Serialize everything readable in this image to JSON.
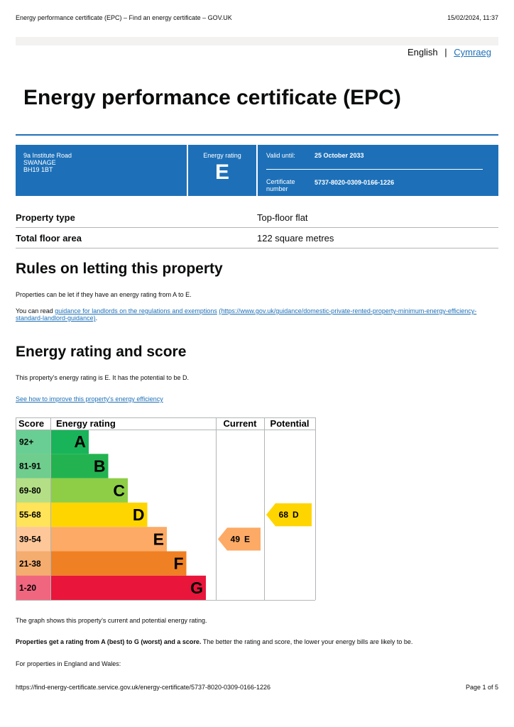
{
  "print_header": {
    "left": "Energy performance certificate (EPC) – Find an energy certificate – GOV.UK",
    "right": "15/02/2024, 11:37"
  },
  "language": {
    "current": "English",
    "separator": "|",
    "other": "Cymraeg"
  },
  "title": "Energy performance certificate (EPC)",
  "summary": {
    "address": [
      "9a Institute Road",
      "SWANAGE",
      "BH19 1BT"
    ],
    "rating_label": "Energy rating",
    "rating": "E",
    "valid_until_label": "Valid until:",
    "valid_until": "25 October 2033",
    "certificate_label": "Certificate number",
    "certificate_number": "5737-8020-0309-0166-1226"
  },
  "property": [
    {
      "label": "Property type",
      "value": "Top-floor flat"
    },
    {
      "label": "Total floor area",
      "value": "122 square metres"
    }
  ],
  "letting": {
    "heading": "Rules on letting this property",
    "intro": "Properties can be let if they have an energy rating from A to E.",
    "read_prefix": "You can read",
    "link": "guidance for landlords on the regulations and exemptions",
    "url": "(https://www.gov.uk/guidance/domestic-private-rented-property-minimum-energy-efficiency-standard-landlord-guidance)",
    "suffix": "."
  },
  "energy": {
    "heading": "Energy rating and score",
    "intro": "This property’s energy rating is E. It has the potential to be D.",
    "link": "See how to improve this property’s energy efficiency"
  },
  "rating_chart": {
    "headers": [
      "Score",
      "Energy rating",
      "Current",
      "Potential"
    ],
    "bands": [
      {
        "score": "92+",
        "letter": "A",
        "color": "#19b459"
      },
      {
        "score": "81-91",
        "letter": "B",
        "color": "#22b350"
      },
      {
        "score": "69-80",
        "letter": "C",
        "color": "#8dce46"
      },
      {
        "score": "55-68",
        "letter": "D",
        "color": "#ffd500"
      },
      {
        "score": "39-54",
        "letter": "E",
        "color": "#fcaa65"
      },
      {
        "score": "21-38",
        "letter": "F",
        "color": "#ef8023"
      },
      {
        "score": "1-20",
        "letter": "G",
        "color": "#e9153b"
      }
    ],
    "current": {
      "score": 49,
      "letter": "E"
    },
    "potential": {
      "score": 68,
      "letter": "D"
    }
  },
  "notes": {
    "graph": "The graph shows this property’s current and potential energy rating.",
    "bold": "Properties get a rating from A (best) to G (worst) and a score.",
    "rest": "The better the rating and score, the lower your energy bills are likely to be.",
    "regions": "For properties in England and Wales:"
  },
  "footer": {
    "url": "https://find-energy-certificate.service.gov.uk/energy-certificate/5737-8020-0309-0166-1226",
    "page": "Page 1 of 5"
  }
}
